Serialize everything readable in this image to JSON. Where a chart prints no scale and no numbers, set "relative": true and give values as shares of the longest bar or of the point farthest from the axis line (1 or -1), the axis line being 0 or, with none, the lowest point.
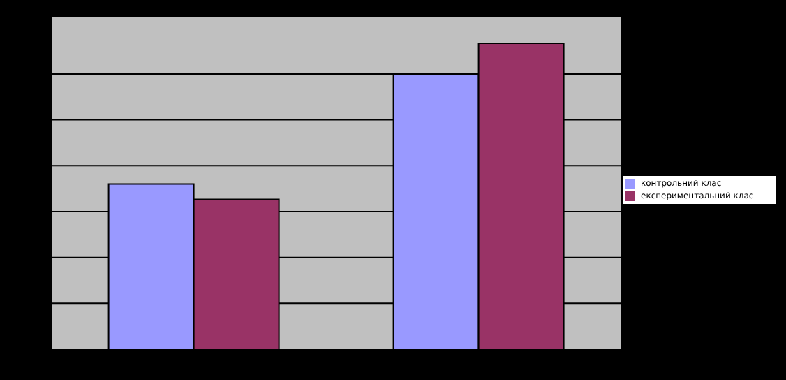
{
  "chart_data": {
    "type": "bar",
    "relative": true,
    "categories": [
      null,
      null
    ],
    "series": [
      {
        "name": "контрольний клас",
        "color": "#9999ff",
        "values": [
          0.54,
          0.9
        ]
      },
      {
        "name": "експериментальний клас",
        "color": "#993366",
        "values": [
          0.49,
          1
        ]
      }
    ],
    "grid": "y",
    "legend": "right"
  }
}
